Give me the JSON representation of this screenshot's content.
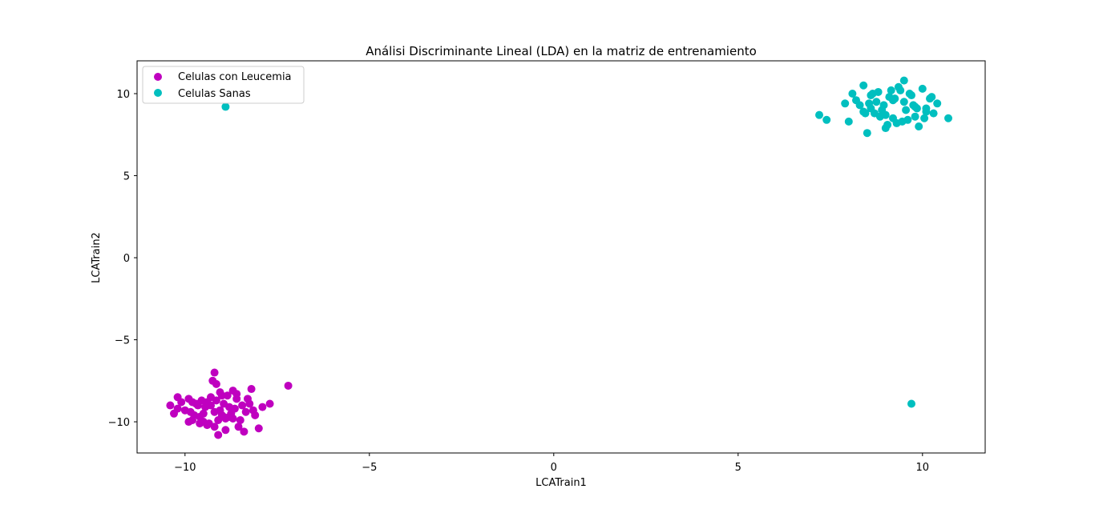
{
  "chart_data": {
    "type": "scatter",
    "title": "Análisi Discriminante Lineal (LDA) en la matriz de entrenamiento",
    "xlabel": "LCATrain1",
    "ylabel": "LCATrain2",
    "xlim": [
      -11.3,
      11.7
    ],
    "ylim": [
      -11.9,
      12.0
    ],
    "xticks": [
      -10,
      -5,
      0,
      5,
      10
    ],
    "xtick_labels": [
      "−10",
      "−5",
      "0",
      "5",
      "10"
    ],
    "yticks": [
      -10,
      -5,
      0,
      5,
      10
    ],
    "ytick_labels": [
      "−10",
      "−5",
      "0",
      "5",
      "10"
    ],
    "grid": false,
    "legend_position": "top-left",
    "series": [
      {
        "name": "Celulas con Leucemia",
        "color": "#bf00bf",
        "x": [
          -9.2,
          -7.2,
          -9.0,
          -8.7,
          -8.2,
          -8.6,
          -7.7,
          -7.9,
          -10.2,
          -10.4,
          -10.2,
          -9.1,
          -8.0,
          -9.5,
          -9.8,
          -8.9,
          -9.4,
          -8.8,
          -9.15,
          -9.2,
          -8.4,
          -8.5,
          -9.3,
          -9.6,
          -10.0,
          -9.9,
          -8.3,
          -8.1,
          -9.7,
          -8.95,
          -9.05,
          -8.75,
          -9.45,
          -9.55,
          -8.65,
          -9.35,
          -9.85,
          -8.55,
          -9.25,
          -10.1,
          -9.65,
          -8.85,
          -9.75,
          -8.45,
          -9.0,
          -9.3,
          -8.7,
          -9.5,
          -8.9,
          -9.1,
          -8.6,
          -9.4,
          -8.8,
          -9.2,
          -8.35,
          -9.9,
          -9.6,
          -8.25,
          -8.15,
          -9.8,
          -10.3,
          -9.15,
          -8.95,
          -9.05
        ],
        "y": [
          -7.0,
          -7.8,
          -8.4,
          -8.1,
          -8.0,
          -8.3,
          -8.9,
          -9.1,
          -9.2,
          -9.0,
          -8.5,
          -10.8,
          -10.4,
          -9.5,
          -8.8,
          -9.8,
          -10.2,
          -9.1,
          -8.7,
          -9.4,
          -10.6,
          -9.9,
          -9.0,
          -9.7,
          -9.3,
          -10.0,
          -8.6,
          -9.6,
          -8.9,
          -8.9,
          -9.3,
          -9.5,
          -9.1,
          -8.7,
          -9.2,
          -10.1,
          -9.4,
          -10.3,
          -7.5,
          -8.8,
          -9.0,
          -8.4,
          -9.6,
          -9.0,
          -9.6,
          -8.5,
          -9.8,
          -10.0,
          -10.5,
          -9.9,
          -8.6,
          -8.8,
          -9.7,
          -10.3,
          -9.4,
          -8.6,
          -10.1,
          -8.9,
          -9.3,
          -9.9,
          -9.5,
          -7.7,
          -9.7,
          -8.2
        ],
        "outliers_x": [],
        "outliers_y": []
      },
      {
        "name": "Celulas Sanas",
        "color": "#00bfbf",
        "x": [
          -8.9,
          9.7,
          9.5,
          8.4,
          10.4,
          10.7,
          7.2,
          7.4,
          8.0,
          8.5,
          9.9,
          9.0,
          8.7,
          9.2,
          9.4,
          8.6,
          9.8,
          10.1,
          10.3,
          8.3,
          8.1,
          7.9,
          9.6,
          9.1,
          8.8,
          9.3,
          10.0,
          10.2,
          8.9,
          9.5,
          9.0,
          8.6,
          9.7,
          8.4,
          9.8,
          9.2,
          10.1,
          8.2,
          9.35,
          9.65,
          8.95,
          9.05,
          9.15,
          8.75,
          9.45,
          9.55,
          8.85,
          9.25,
          10.05,
          8.55,
          9.85,
          8.65,
          10.25,
          9.75,
          8.45
        ],
        "y": [
          9.2,
          -8.9,
          10.8,
          10.5,
          9.4,
          8.5,
          8.7,
          8.4,
          8.3,
          7.6,
          8.0,
          7.9,
          8.8,
          9.6,
          10.2,
          9.9,
          8.6,
          9.1,
          8.8,
          9.3,
          10.0,
          9.4,
          8.4,
          9.8,
          10.1,
          8.2,
          10.3,
          9.7,
          9.0,
          9.5,
          8.7,
          9.1,
          9.9,
          8.9,
          9.2,
          8.5,
          8.9,
          9.6,
          10.4,
          10.0,
          9.3,
          8.1,
          10.2,
          9.5,
          8.3,
          9.0,
          8.6,
          9.7,
          8.5,
          9.4,
          9.1,
          10.0,
          9.8,
          9.3,
          8.8
        ]
      }
    ]
  }
}
